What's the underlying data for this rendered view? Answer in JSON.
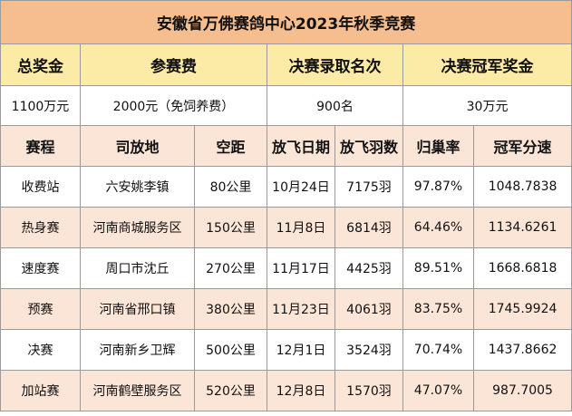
{
  "title": "安徽省万佛赛鸽中心2023年秋季竞赛",
  "summary": {
    "headers": [
      "总奖金",
      "参赛费",
      "决赛录取名次",
      "决赛冠军奖金"
    ],
    "values": [
      "1100万元",
      "2000元（免饲养费）",
      "900名",
      "30万元"
    ]
  },
  "race_table": {
    "columns": [
      "赛程",
      "司放地",
      "空距",
      "放飞日期",
      "放飞羽数",
      "归巢率",
      "冠军分速"
    ],
    "rows": [
      [
        "收费站",
        "六安姚李镇",
        "80公里",
        "10月24日",
        "7175羽",
        "97.87%",
        "1048.7838"
      ],
      [
        "热身赛",
        "河南商城服务区",
        "150公里",
        "11月8日",
        "6814羽",
        "64.46%",
        "1134.6261"
      ],
      [
        "速度赛",
        "周口市沈丘",
        "270公里",
        "11月17日",
        "4425羽",
        "89.51%",
        "1668.6818"
      ],
      [
        "预赛",
        "河南省邢口镇",
        "380公里",
        "11月23日",
        "4061羽",
        "83.75%",
        "1745.9924"
      ],
      [
        "决赛",
        "河南新乡卫辉",
        "500公里",
        "12月1日",
        "3524羽",
        "70.74%",
        "1437.8662"
      ],
      [
        "加站赛",
        "河南鹤壁服务区",
        "520公里",
        "12月8日",
        "1570羽",
        "47.07%",
        "987.7005"
      ]
    ]
  },
  "colors": {
    "title_bg": "#F6BE8F",
    "summary_header_bg": "#FCEBA6",
    "table_header_bg": "#FBE5D6",
    "alt_row_bg": "#FBE5D6",
    "grid": "#9a9a9a"
  }
}
